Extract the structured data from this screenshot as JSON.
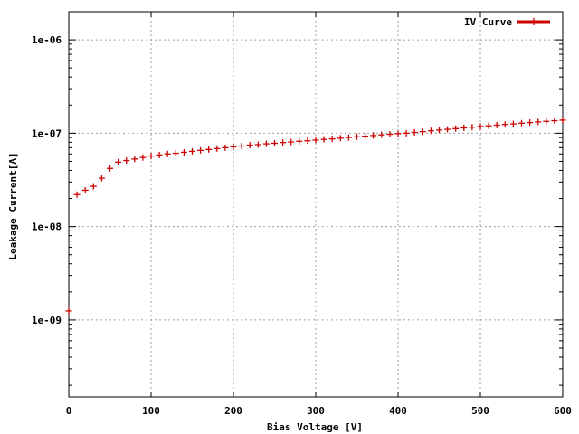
{
  "chart_data": {
    "type": "scatter",
    "title": "",
    "xlabel": "Bias Voltage [V]",
    "ylabel": "Leakage Current[A]",
    "xlim": [
      0,
      600
    ],
    "ylim": [
      1.5e-10,
      2e-06
    ],
    "y_scale": "log",
    "grid": true,
    "legend_position": "top-right",
    "x_ticks": [
      0,
      100,
      200,
      300,
      400,
      500,
      600
    ],
    "x_tick_labels": [
      "0",
      "100",
      "200",
      "300",
      "400",
      "500",
      "600"
    ],
    "y_ticks": [
      1e-09,
      1e-08,
      1e-07,
      1e-06
    ],
    "y_tick_labels": [
      "1e-09",
      "1e-08",
      "1e-07",
      "1e-06"
    ],
    "series": [
      {
        "name": "IV Curve",
        "color": "#cc0000",
        "marker": "plus",
        "x": [
          0,
          10,
          20,
          30,
          40,
          50,
          60,
          70,
          80,
          90,
          100,
          110,
          120,
          130,
          140,
          150,
          160,
          170,
          180,
          190,
          200,
          210,
          220,
          230,
          240,
          250,
          260,
          270,
          280,
          290,
          300,
          310,
          320,
          330,
          340,
          350,
          360,
          370,
          380,
          390,
          400,
          410,
          420,
          430,
          440,
          450,
          460,
          470,
          480,
          490,
          500,
          510,
          520,
          530,
          540,
          550,
          560,
          570,
          580,
          590,
          600
        ],
        "y": [
          1.25e-09,
          2.2e-08,
          2.45e-08,
          2.7e-08,
          3.3e-08,
          4.2e-08,
          4.9e-08,
          5.1e-08,
          5.3e-08,
          5.5e-08,
          5.7e-08,
          5.85e-08,
          6e-08,
          6.1e-08,
          6.25e-08,
          6.4e-08,
          6.55e-08,
          6.7e-08,
          6.85e-08,
          7e-08,
          7.15e-08,
          7.3e-08,
          7.45e-08,
          7.55e-08,
          7.7e-08,
          7.8e-08,
          7.95e-08,
          8.05e-08,
          8.2e-08,
          8.3e-08,
          8.45e-08,
          8.6e-08,
          8.7e-08,
          8.85e-08,
          9e-08,
          9.15e-08,
          9.3e-08,
          9.45e-08,
          9.6e-08,
          9.75e-08,
          9.9e-08,
          1e-07,
          1.02e-07,
          1.04e-07,
          1.06e-07,
          1.08e-07,
          1.1e-07,
          1.12e-07,
          1.14e-07,
          1.16e-07,
          1.18e-07,
          1.2e-07,
          1.22e-07,
          1.24e-07,
          1.26e-07,
          1.28e-07,
          1.3e-07,
          1.32e-07,
          1.34e-07,
          1.36e-07,
          1.38e-07
        ]
      }
    ]
  }
}
